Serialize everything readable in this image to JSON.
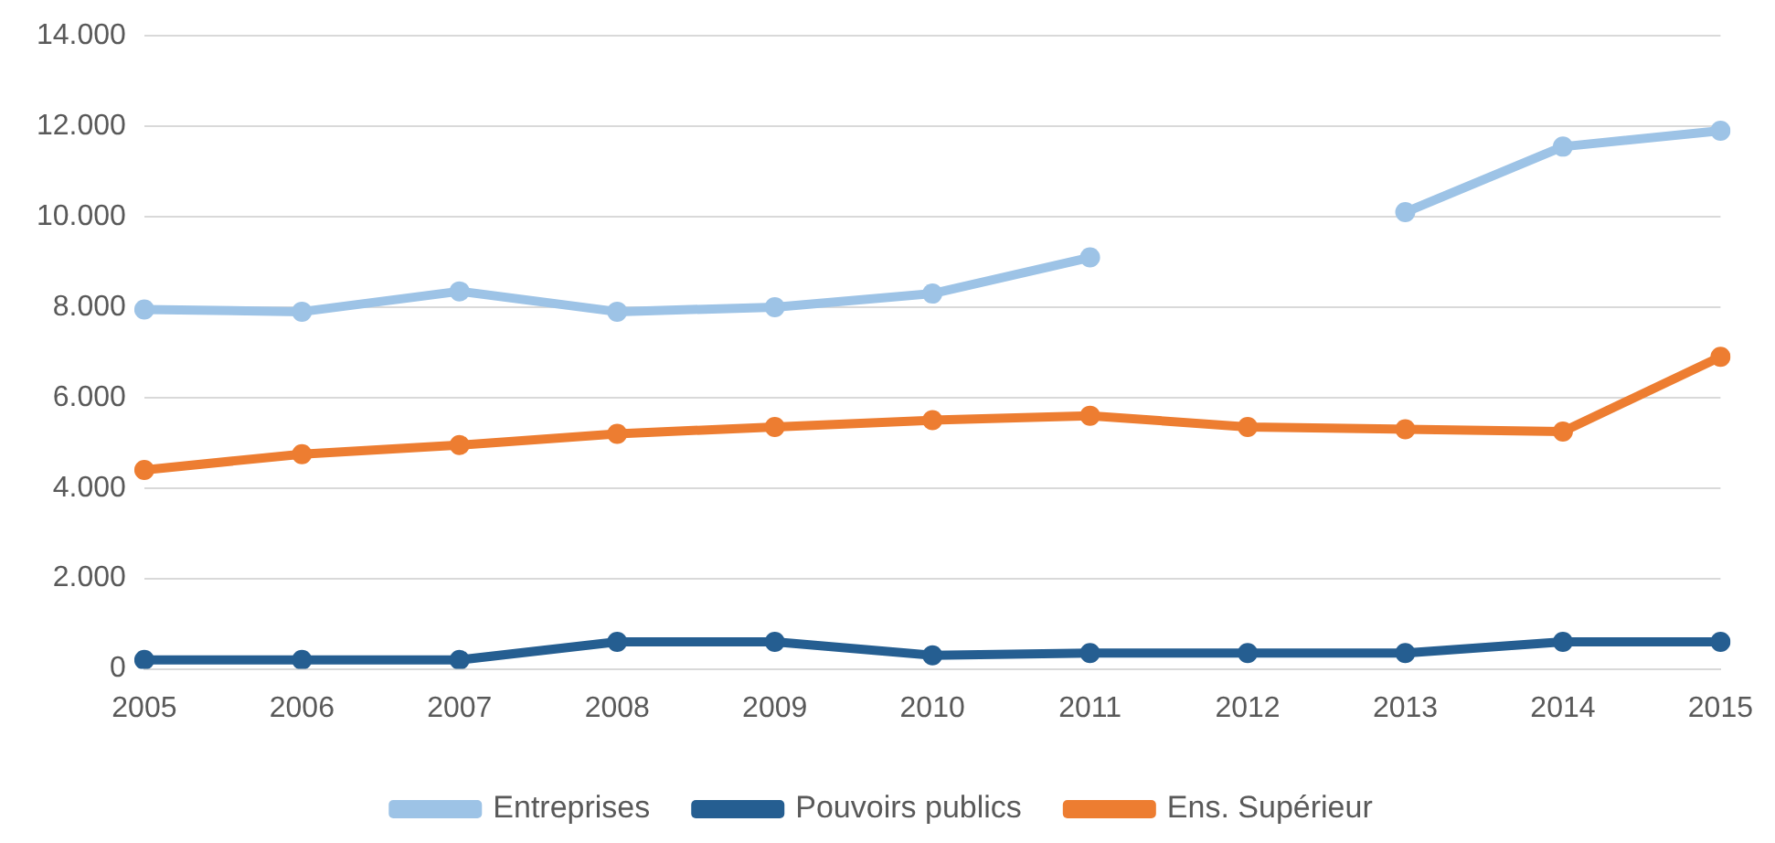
{
  "chart_data": {
    "type": "line",
    "categories": [
      "2005",
      "2006",
      "2007",
      "2008",
      "2009",
      "2010",
      "2011",
      "2012",
      "2013",
      "2014",
      "2015"
    ],
    "series": [
      {
        "name": "Entreprises",
        "color": "#9dc3e6",
        "values": [
          7950,
          7900,
          8350,
          7900,
          8000,
          8300,
          9100,
          null,
          10100,
          11550,
          11900
        ]
      },
      {
        "name": "Pouvoirs publics",
        "color": "#255e91",
        "values": [
          200,
          200,
          200,
          600,
          600,
          300,
          350,
          350,
          350,
          600,
          600
        ]
      },
      {
        "name": "Ens. Supérieur",
        "color": "#ed7d31",
        "values": [
          4400,
          4750,
          4950,
          5200,
          5350,
          5500,
          5600,
          5350,
          5300,
          5250,
          6900
        ]
      }
    ],
    "ylim": [
      0,
      14000
    ],
    "yticks": [
      {
        "value": 0,
        "label": "0"
      },
      {
        "value": 2000,
        "label": "2.000"
      },
      {
        "value": 4000,
        "label": "4.000"
      },
      {
        "value": 6000,
        "label": "6.000"
      },
      {
        "value": 8000,
        "label": "8.000"
      },
      {
        "value": 10000,
        "label": "10.000"
      },
      {
        "value": 12000,
        "label": "12.000"
      },
      {
        "value": 14000,
        "label": "14.000"
      }
    ],
    "grid": "y",
    "legend": "bottom",
    "marker": "circle",
    "line_style": "solid"
  }
}
